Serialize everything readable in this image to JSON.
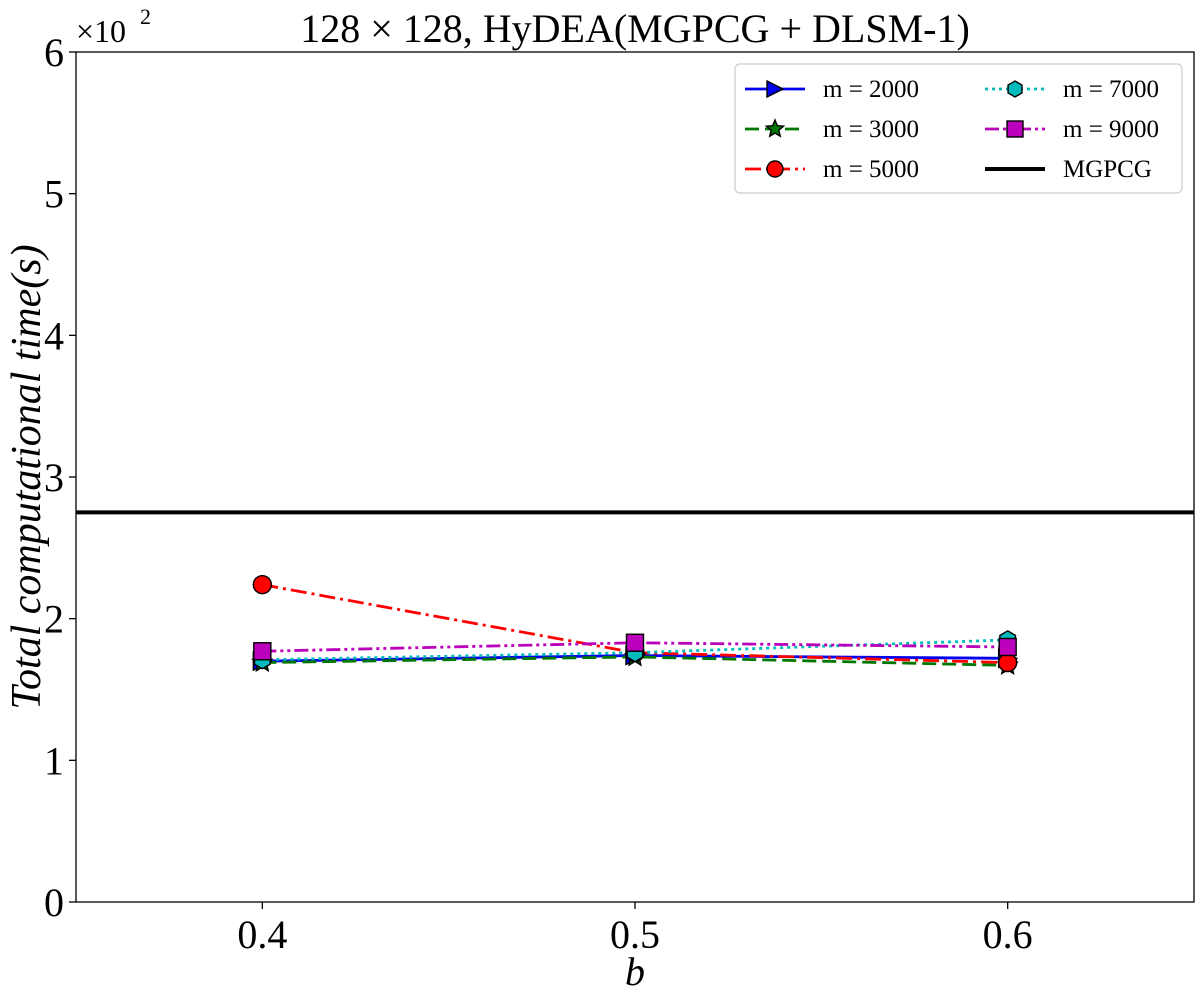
{
  "chart_data": {
    "type": "line",
    "title": "128 × 128, HyDEA(MGPCG + DLSM-1)",
    "xlabel": "b",
    "ylabel": "Total computational time(s)",
    "y_multiplier": "×10",
    "y_multiplier_exp": "2",
    "xlim": [
      0.35,
      0.65
    ],
    "ylim": [
      0,
      6
    ],
    "xticks": [
      {
        "value": 0.4,
        "label": "0.4"
      },
      {
        "value": 0.5,
        "label": "0.5"
      },
      {
        "value": 0.6,
        "label": "0.6"
      }
    ],
    "yticks": [
      {
        "value": 0,
        "label": "0"
      },
      {
        "value": 1,
        "label": "1"
      },
      {
        "value": 2,
        "label": "2"
      },
      {
        "value": 3,
        "label": "3"
      },
      {
        "value": 4,
        "label": "4"
      },
      {
        "value": 5,
        "label": "5"
      },
      {
        "value": 6,
        "label": "6"
      }
    ],
    "grid": false,
    "legend_position": "top-right",
    "legend_columns": 2,
    "x": [
      0.4,
      0.5,
      0.6
    ],
    "series": [
      {
        "name": "m = 2000",
        "values": [
          1.7,
          1.74,
          1.72
        ],
        "color": "#0000ee",
        "dash": "solid",
        "marker": "triangle-right"
      },
      {
        "name": "m = 3000",
        "values": [
          1.69,
          1.73,
          1.67
        ],
        "color": "#007700",
        "dash": "dashed",
        "marker": "star"
      },
      {
        "name": "m = 5000",
        "values": [
          2.24,
          1.76,
          1.69
        ],
        "color": "#ff0000",
        "dash": "dashdot",
        "marker": "circle"
      },
      {
        "name": "m = 7000",
        "values": [
          1.71,
          1.76,
          1.85
        ],
        "color": "#00bbbb",
        "dash": "dotted",
        "marker": "hexagon"
      },
      {
        "name": "m = 9000",
        "values": [
          1.77,
          1.83,
          1.8
        ],
        "color": "#bb00bb",
        "dash": "dashdotdot",
        "marker": "square"
      }
    ],
    "reference_lines": [
      {
        "name": "MGPCG",
        "value": 2.75,
        "color": "#000000"
      }
    ]
  }
}
